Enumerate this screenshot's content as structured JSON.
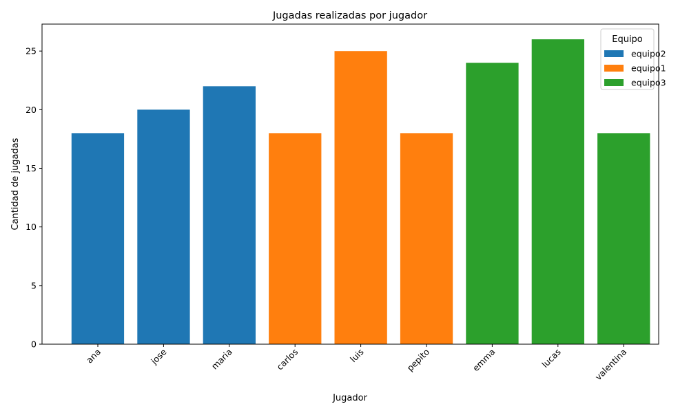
{
  "chart_data": {
    "type": "bar",
    "title": "Jugadas realizadas por jugador",
    "xlabel": "Jugador",
    "ylabel": "Cantidad de jugadas",
    "categories": [
      "ana",
      "jose",
      "maria",
      "carlos",
      "luis",
      "pepito",
      "emma",
      "lucas",
      "valentina"
    ],
    "values": [
      18,
      20,
      22,
      18,
      25,
      18,
      24,
      26,
      18
    ],
    "groups": [
      "equipo2",
      "equipo2",
      "equipo2",
      "equipo1",
      "equipo1",
      "equipo1",
      "equipo3",
      "equipo3",
      "equipo3"
    ],
    "ylim": [
      0,
      27.3
    ],
    "yticks": [
      0,
      5,
      10,
      15,
      20,
      25
    ],
    "grid": false,
    "legend": {
      "title": "Equipo",
      "position": "top-right",
      "entries": [
        {
          "name": "equipo2",
          "color": "#1f77b4"
        },
        {
          "name": "equipo1",
          "color": "#ff7f0e"
        },
        {
          "name": "equipo3",
          "color": "#2ca02c"
        }
      ]
    }
  }
}
